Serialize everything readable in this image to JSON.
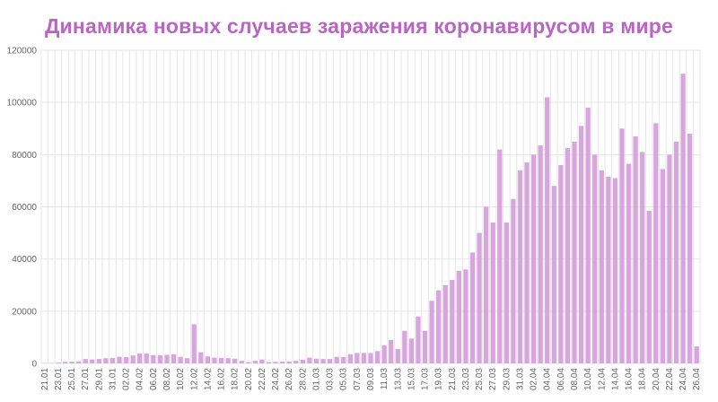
{
  "chart_data": {
    "type": "bar",
    "title": "Динамика новых случаев заражения коронавирусом в мире",
    "xlabel": "",
    "ylabel": "",
    "ylim": [
      0,
      120000
    ],
    "yticks": [
      "0",
      "20000",
      "40000",
      "60000",
      "80000",
      "100000",
      "120000"
    ],
    "grid": true,
    "bar_color": "#d7a6dc",
    "title_color": "#b965c4",
    "categories": [
      "21.01",
      "22.01",
      "23.01",
      "24.01",
      "25.01",
      "26.01",
      "27.01",
      "28.01",
      "29.01",
      "30.01",
      "31.01",
      "01.02",
      "02.02",
      "03.02",
      "04.02",
      "05.02",
      "06.02",
      "07.02",
      "08.02",
      "09.02",
      "10.02",
      "11.02",
      "12.02",
      "13.02",
      "14.02",
      "15.02",
      "16.02",
      "17.02",
      "18.02",
      "19.02",
      "20.02",
      "21.02",
      "22.02",
      "23.02",
      "24.02",
      "25.02",
      "26.02",
      "27.02",
      "28.02",
      "29.02",
      "01.03",
      "02.03",
      "03.03",
      "04.03",
      "05.03",
      "06.03",
      "07.03",
      "08.03",
      "09.03",
      "10.03",
      "11.03",
      "12.03",
      "13.03",
      "14.03",
      "15.03",
      "16.03",
      "17.03",
      "18.03",
      "19.03",
      "20.03",
      "21.03",
      "22.03",
      "23.03",
      "24.03",
      "25.03",
      "26.03",
      "27.03",
      "28.03",
      "29.03",
      "30.03",
      "31.03",
      "01.04",
      "02.04",
      "03.04",
      "04.04",
      "05.04",
      "06.04",
      "07.04",
      "08.04",
      "09.04",
      "10.04",
      "11.04",
      "12.04",
      "13.04",
      "14.04",
      "15.04",
      "16.04",
      "17.04",
      "18.04",
      "19.04",
      "20.04",
      "21.04",
      "22.04",
      "23.04",
      "24.04",
      "25.04",
      "26.04"
    ],
    "xtick_labels": [
      "21.01",
      "23.01",
      "25.01",
      "27.01",
      "29.01",
      "31.01",
      "02.02",
      "04.02",
      "06.02",
      "08.02",
      "10.02",
      "12.02",
      "14.02",
      "16.02",
      "18.02",
      "20.02",
      "22.02",
      "24.02",
      "26.02",
      "28.02",
      "01.03",
      "03.03",
      "05.03",
      "07.03",
      "09.03",
      "11.03",
      "13.03",
      "15.03",
      "17.03",
      "19.03",
      "21.03",
      "23.03",
      "25.03",
      "27.03",
      "29.03",
      "31.03",
      "02.04",
      "04.04",
      "06.04",
      "08.04",
      "10.04",
      "12.04",
      "14.04",
      "16.04",
      "18.04",
      "20.04",
      "22.04",
      "24.04",
      "26.04"
    ],
    "values": [
      100,
      100,
      300,
      600,
      700,
      800,
      1700,
      1500,
      1700,
      2000,
      2100,
      2500,
      2400,
      3000,
      3800,
      3800,
      3200,
      3100,
      3300,
      3500,
      2500,
      2000,
      15000,
      4300,
      2700,
      2200,
      2100,
      2000,
      1800,
      1000,
      500,
      1000,
      1500,
      500,
      600,
      700,
      700,
      1000,
      1400,
      2200,
      1800,
      1700,
      1700,
      2500,
      2400,
      3500,
      4000,
      4000,
      4000,
      4700,
      7000,
      9000,
      5500,
      12500,
      9500,
      18000,
      12500,
      24000,
      28000,
      30000,
      32000,
      35500,
      36000,
      42500,
      50000,
      60000,
      54000,
      82000,
      54000,
      63000,
      74000,
      77000,
      80000,
      83500,
      102000,
      68000,
      76000,
      82500,
      85000,
      91000,
      98000,
      80000,
      74000,
      71500,
      71000,
      90000,
      76500,
      87000,
      81000,
      58500,
      92000,
      74500,
      80000,
      85000,
      111000,
      88000,
      6500
    ]
  }
}
